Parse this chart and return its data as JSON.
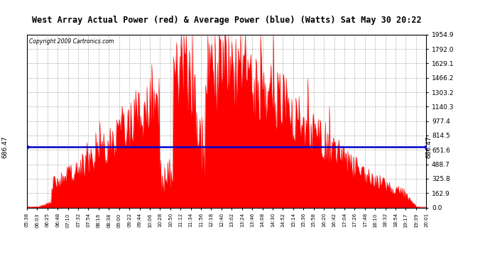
{
  "title": "West Array Actual Power (red) & Average Power (blue) (Watts) Sat May 30 20:22",
  "copyright": "Copyright 2009 Cartronics.com",
  "average_power": 686.47,
  "ymax": 1954.9,
  "yticks": [
    0.0,
    162.9,
    325.8,
    488.7,
    651.6,
    814.5,
    977.4,
    1140.3,
    1303.2,
    1466.2,
    1629.1,
    1792.0,
    1954.9
  ],
  "bg_color": "#ffffff",
  "plot_bg_color": "#ffffff",
  "grid_color": "#aaaaaa",
  "fill_color": "#ff0000",
  "line_color": "#0000cc",
  "title_bg": "#c0c0c0",
  "xtick_labels": [
    "05:38",
    "06:03",
    "06:25",
    "06:48",
    "07:10",
    "07:32",
    "07:54",
    "08:16",
    "08:38",
    "09:00",
    "09:22",
    "09:44",
    "10:06",
    "10:28",
    "10:50",
    "11:12",
    "11:34",
    "11:56",
    "12:18",
    "12:40",
    "13:02",
    "13:24",
    "13:46",
    "14:08",
    "14:30",
    "14:52",
    "15:14",
    "15:36",
    "15:58",
    "16:20",
    "16:42",
    "17:04",
    "17:26",
    "17:48",
    "18:10",
    "18:32",
    "18:54",
    "19:17",
    "19:39",
    "20:01"
  ]
}
